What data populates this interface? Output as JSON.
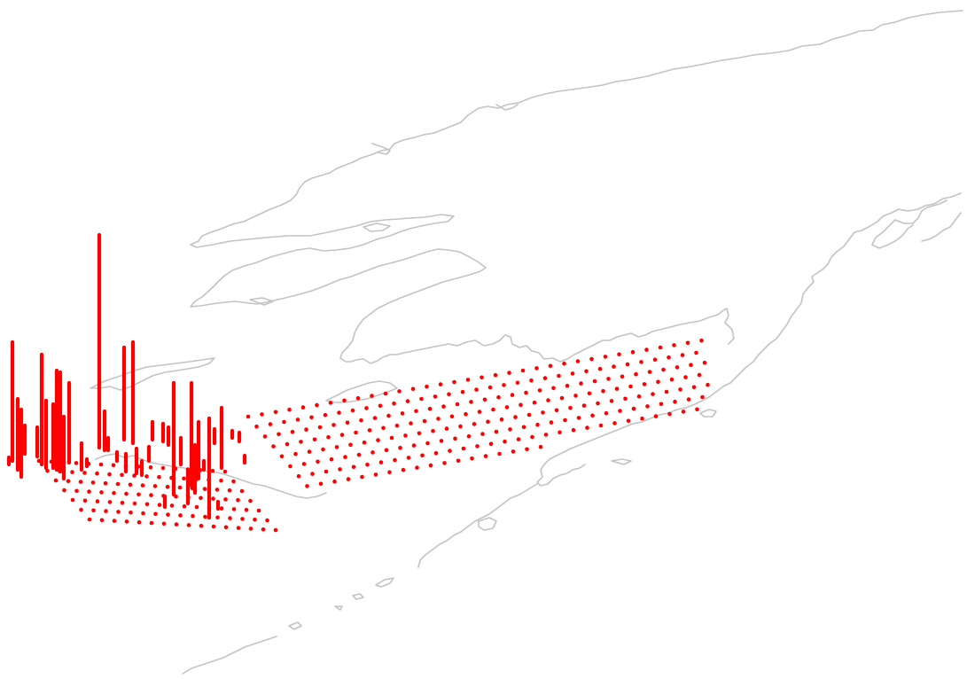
{
  "map": {
    "land_outline_color": "#c3c3c3",
    "marker_color": "#ff0000",
    "background_color": "#ffffff"
  }
}
